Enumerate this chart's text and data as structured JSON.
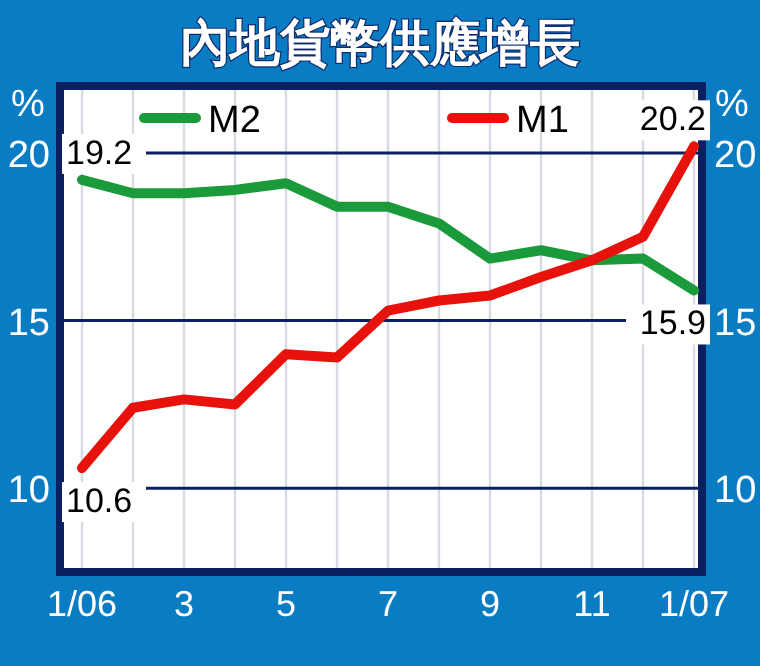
{
  "chart_data": {
    "type": "line",
    "title": "內地貨幣供應增長",
    "categories": [
      "1/06",
      null,
      "3",
      null,
      "5",
      null,
      "7",
      null,
      "9",
      null,
      "11",
      null,
      "1/07"
    ],
    "series": [
      {
        "name": "M2",
        "color": "#1a9a3a",
        "values": [
          19.2,
          18.8,
          18.8,
          18.9,
          19.1,
          18.4,
          18.4,
          17.9,
          16.85,
          17.1,
          16.8,
          16.85,
          15.9
        ],
        "value_labels": [
          "19.2",
          null,
          null,
          null,
          null,
          null,
          null,
          null,
          null,
          null,
          null,
          null,
          "15.9"
        ]
      },
      {
        "name": "M1",
        "color": "#e8120c",
        "values": [
          10.6,
          12.4,
          12.65,
          12.5,
          14.0,
          13.9,
          15.3,
          15.6,
          15.75,
          16.3,
          16.8,
          17.5,
          20.2
        ],
        "value_labels": [
          "10.6",
          null,
          null,
          null,
          null,
          null,
          null,
          null,
          null,
          null,
          null,
          null,
          "20.2"
        ]
      }
    ],
    "ylabel": "%",
    "y2label": "%",
    "ylim": [
      7.5,
      22
    ],
    "yticks": [
      10,
      15,
      20
    ],
    "y2lim": [
      7.5,
      22
    ],
    "y2ticks": [
      10,
      15,
      20
    ],
    "grid": true,
    "legend": "top",
    "marker": "none",
    "line_style": "solid"
  }
}
